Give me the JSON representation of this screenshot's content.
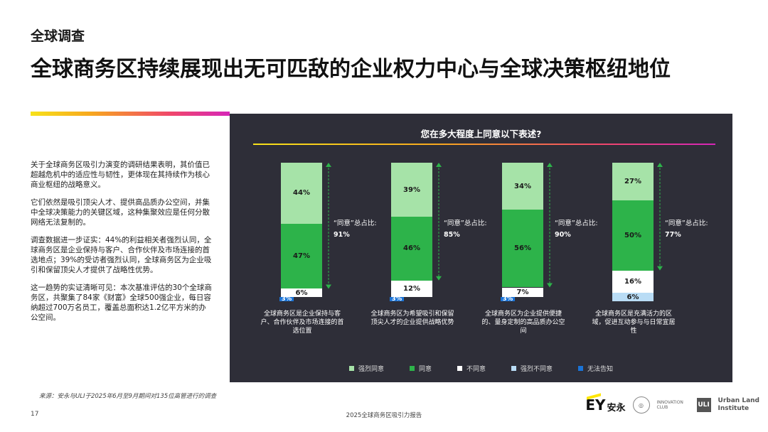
{
  "header": {
    "eyebrow": "全球调查",
    "title": "全球商务区持续展现出无可匹敌的企业权力中心与全球决策枢纽地位"
  },
  "intro": [
    "关于全球商务区吸引力演变的调研结果表明，其价值已超越危机中的适应性与韧性，更体现在其持续作为核心商业枢纽的战略意义。",
    "它们依然是吸引顶尖人才、提供高品质办公空间，并集中全球决策能力的关键区域，这种集聚效应是任何分散网络无法复制的。",
    "调查数据进一步证实：44%的利益相关者强烈认同，全球商务区是企业保持与客户、合作伙伴及市场连接的首选地点；39%的受访者强烈认同，全球商务区为企业吸引和保留顶尖人才提供了战略性优势。",
    "这一趋势的实证清晰可见：本次基准评估的30个全球商务区，共聚集了84家《财富》全球500强企业，每日容纳超过700万名员工，覆盖总面积达1.2亿平方米的办公空间。"
  ],
  "panel": {
    "question": "您在多大程度上同意以下表述?",
    "agree_label": "“同意”总占比:"
  },
  "chart_data": {
    "type": "bar",
    "stacked": true,
    "title": "您在多大程度上同意以下表述?",
    "categories": [
      "全球商务区是企业保持与客户、合作伙伴及市场连接的首选位置",
      "全球商务区为希望吸引和保留顶尖人才的企业提供战略优势",
      "全球商务区为企业提供便捷的、量身定制的高品质办公空间",
      "全球商务区是充满活力的区域，促进互动参与与日常宜居性"
    ],
    "series": [
      {
        "name": "强烈同意",
        "color": "#a6e3a8",
        "values": [
          44,
          39,
          34,
          27
        ]
      },
      {
        "name": "同意",
        "color": "#2db34a",
        "values": [
          47,
          46,
          56,
          50
        ]
      },
      {
        "name": "不同意",
        "color": "#ffffff",
        "values": [
          6,
          12,
          7,
          16
        ]
      },
      {
        "name": "强烈不同意",
        "color": "#b9dcf5",
        "values": [
          0,
          0,
          0,
          6
        ]
      },
      {
        "name": "无法告知",
        "color": "#1a73d6",
        "values": [
          3,
          3,
          3,
          0
        ]
      }
    ],
    "agree_total": [
      "91%",
      "85%",
      "90%",
      "77%"
    ],
    "legend": "bottom"
  },
  "footer": {
    "source": "来源：安永与ULI于2025年6月至9月期间对135位高管进行的调查",
    "page_number": "17",
    "report_title": "2025全球商务区吸引力报告",
    "logo_ey": "EY",
    "logo_ey_cn": "安永",
    "logo_innovation": "INNOVATION CLUB",
    "logo_uli_mark": "ULI",
    "logo_uli_line1": "Urban Land",
    "logo_uli_line2": "Institute"
  }
}
